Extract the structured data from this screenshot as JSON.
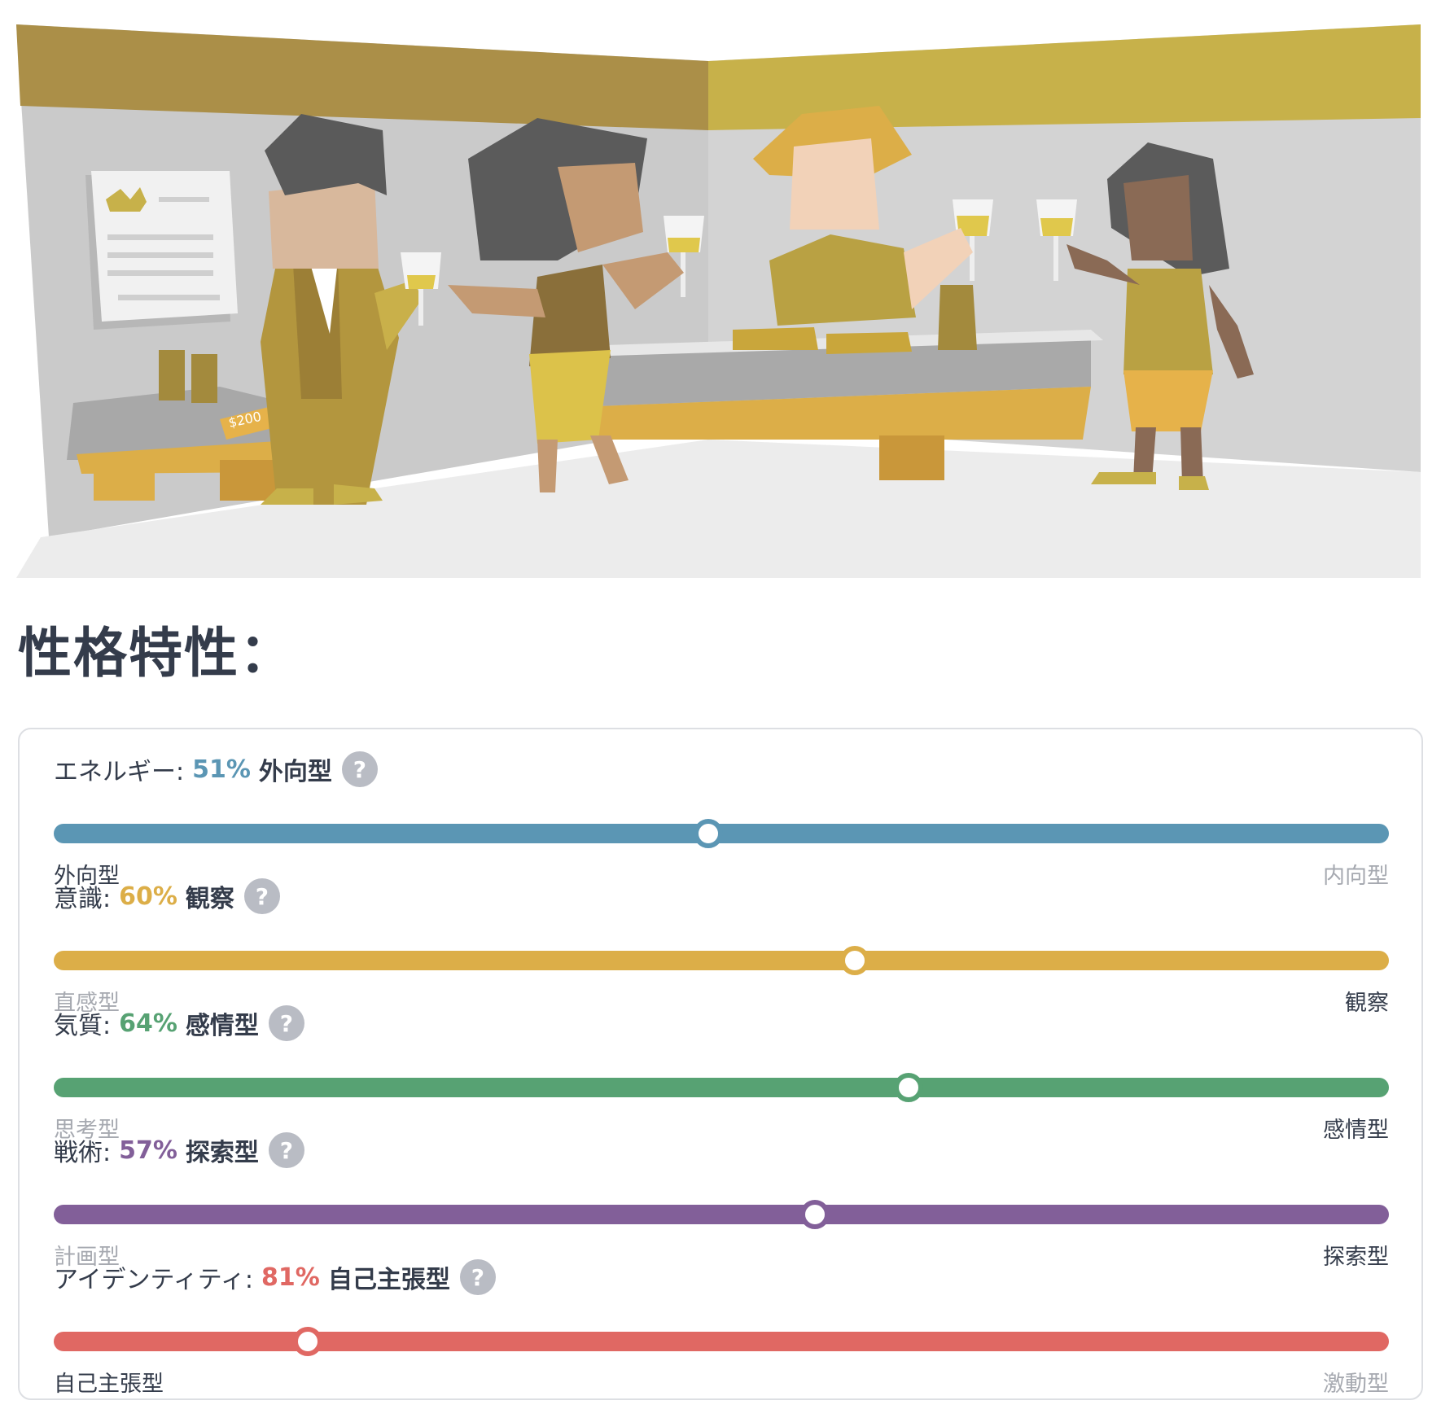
{
  "hero": {
    "illustration": "wine-tasting-party-illustration",
    "price_tag": "$200"
  },
  "section_title": "性格特性：",
  "traits": [
    {
      "label": "エネルギー:",
      "percent_text": "51%",
      "name": "外向型",
      "color": "#5b96b4",
      "value": 0.51,
      "knob_from": "left",
      "left_pole": "外向型",
      "right_pole": "内向型",
      "active_side": "left"
    },
    {
      "label": "意識:",
      "percent_text": "60%",
      "name": "観察",
      "color": "#dcae48",
      "value": 0.6,
      "knob_from": "right",
      "left_pole": "直感型",
      "right_pole": "観察",
      "active_side": "right"
    },
    {
      "label": "気質:",
      "percent_text": "64%",
      "name": "感情型",
      "color": "#57a273",
      "value": 0.64,
      "knob_from": "right",
      "left_pole": "思考型",
      "right_pole": "感情型",
      "active_side": "right"
    },
    {
      "label": "戦術:",
      "percent_text": "57%",
      "name": "探索型",
      "color": "#825f99",
      "value": 0.57,
      "knob_from": "right",
      "left_pole": "計画型",
      "right_pole": "探索型",
      "active_side": "right"
    },
    {
      "label": "アイデンティティ:",
      "percent_text": "81%",
      "name": "自己主張型",
      "color": "#e06863",
      "value": 0.81,
      "knob_from": "left",
      "left_pole": "自己主張型",
      "right_pole": "激動型",
      "active_side": "left"
    }
  ],
  "help_icon_glyph": "?"
}
